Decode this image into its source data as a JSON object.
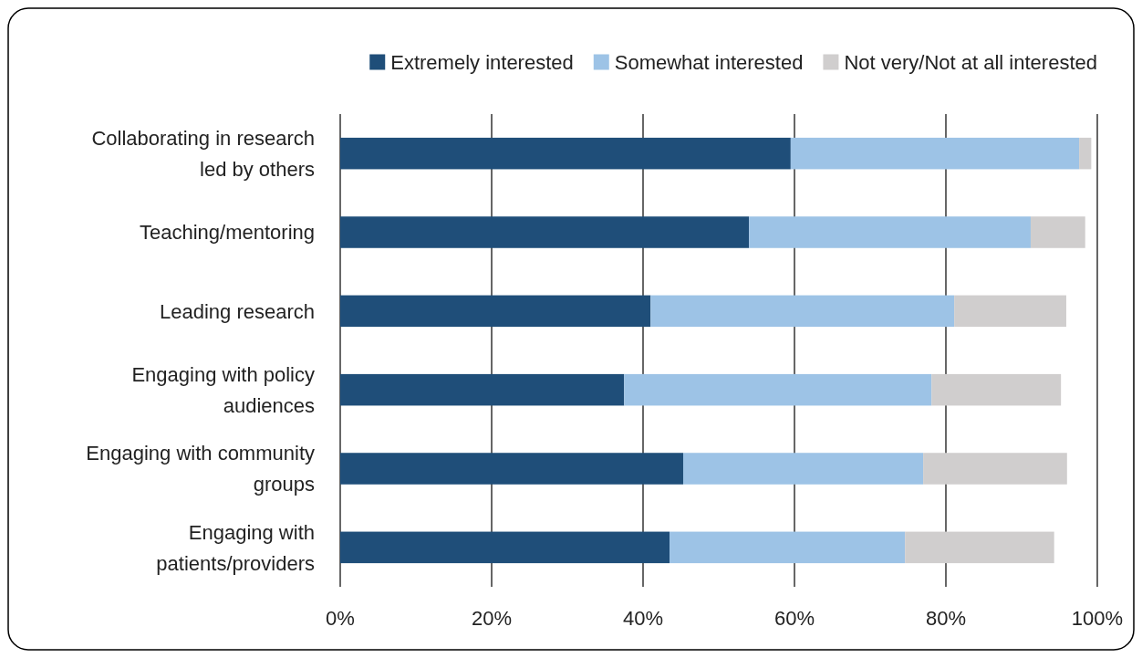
{
  "chart_data": {
    "type": "bar",
    "orientation": "horizontal",
    "stacked": true,
    "categories": [
      "Collaborating in research led by others",
      "Teaching/mentoring",
      "Leading research",
      "Engaging with policy audiences",
      "Engaging with community groups",
      "Engaging with patients/providers"
    ],
    "series": [
      {
        "name": "Extremely interested",
        "color": "#1f4e79",
        "values": [
          59.5,
          54.0,
          41.0,
          37.5,
          45.3,
          43.5
        ]
      },
      {
        "name": "Somewhat interested",
        "color": "#9dc3e6",
        "values": [
          38.1,
          37.2,
          40.1,
          40.6,
          31.7,
          31.1
        ]
      },
      {
        "name": "Not very/Not at all interested",
        "color": "#d0cece",
        "values": [
          1.6,
          7.2,
          14.8,
          17.1,
          19.0,
          19.7
        ]
      }
    ],
    "xlim": [
      0,
      100
    ],
    "xticks": [
      {
        "value": 0,
        "label": "0%"
      },
      {
        "value": 20,
        "label": "20%"
      },
      {
        "value": 40,
        "label": "40%"
      },
      {
        "value": 60,
        "label": "60%"
      },
      {
        "value": 80,
        "label": "80%"
      },
      {
        "value": 100,
        "label": "100%"
      }
    ],
    "grid": "x",
    "legend": "top right"
  }
}
